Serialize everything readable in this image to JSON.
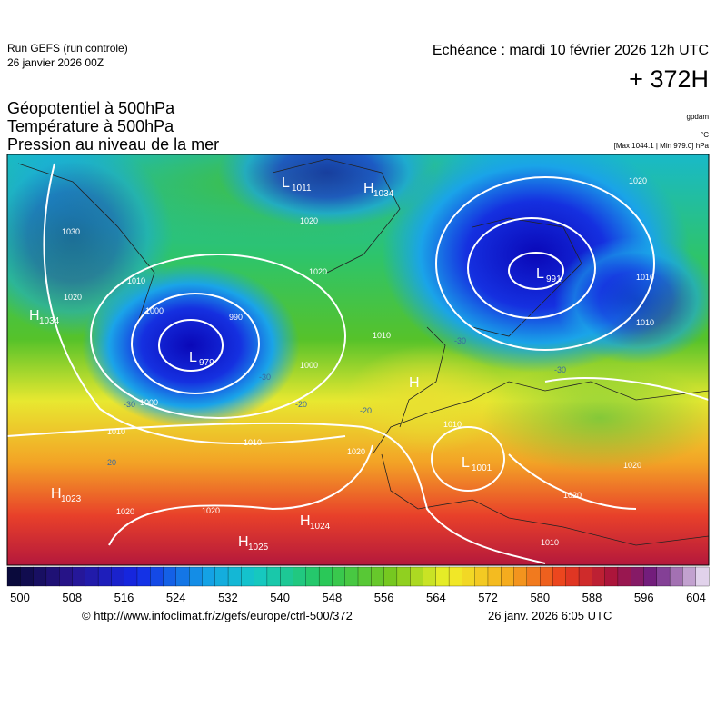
{
  "header": {
    "run": "Run GEFS (run controle)",
    "run_date": "26 janvier 2026 00Z",
    "valid": "Echéance : mardi 10 février 2026 12h UTC",
    "lead": "+ 372H"
  },
  "titles": [
    "Géopotentiel à 500hPa",
    "Température à 500hPa",
    "Pression au niveau de la mer"
  ],
  "units": [
    "gpdam",
    "°C",
    "[Max 1044.1 | Min 979.0] hPa"
  ],
  "centers": [
    {
      "letter": "L",
      "pressure": "1011"
    },
    {
      "letter": "H",
      "pressure": "1034"
    },
    {
      "letter": "H",
      "pressure": "1034"
    },
    {
      "letter": "L",
      "pressure": "979"
    },
    {
      "letter": "L",
      "pressure": "991"
    },
    {
      "letter": "H"
    },
    {
      "letter": "L",
      "pressure": "1001"
    },
    {
      "letter": "H",
      "pressure": "1023"
    },
    {
      "letter": "H",
      "pressure": "1024"
    },
    {
      "letter": "H",
      "pressure": "1025"
    }
  ],
  "contour_labels": [
    "1030",
    "1020",
    "1000",
    "990",
    "1000",
    "1010",
    "1020",
    "1010",
    "1020",
    "1020",
    "1020",
    "1010",
    "1010",
    "1010",
    "1020",
    "1020",
    "1020",
    "1010",
    "1000",
    "1020",
    "1010",
    "1010"
  ],
  "temperature_labels": [
    "-30",
    "-30",
    "-20",
    "-20",
    "-30",
    "-20",
    "-30"
  ],
  "colorbar": {
    "ticks": [
      "500",
      "508",
      "516",
      "524",
      "532",
      "540",
      "548",
      "556",
      "564",
      "572",
      "580",
      "588",
      "596",
      "604"
    ]
  },
  "footer": {
    "source": "© http://www.infoclimat.fr/z/gefs/europe/ctrl-500/372",
    "generated": "26 janv. 2026  6:05 UTC"
  }
}
